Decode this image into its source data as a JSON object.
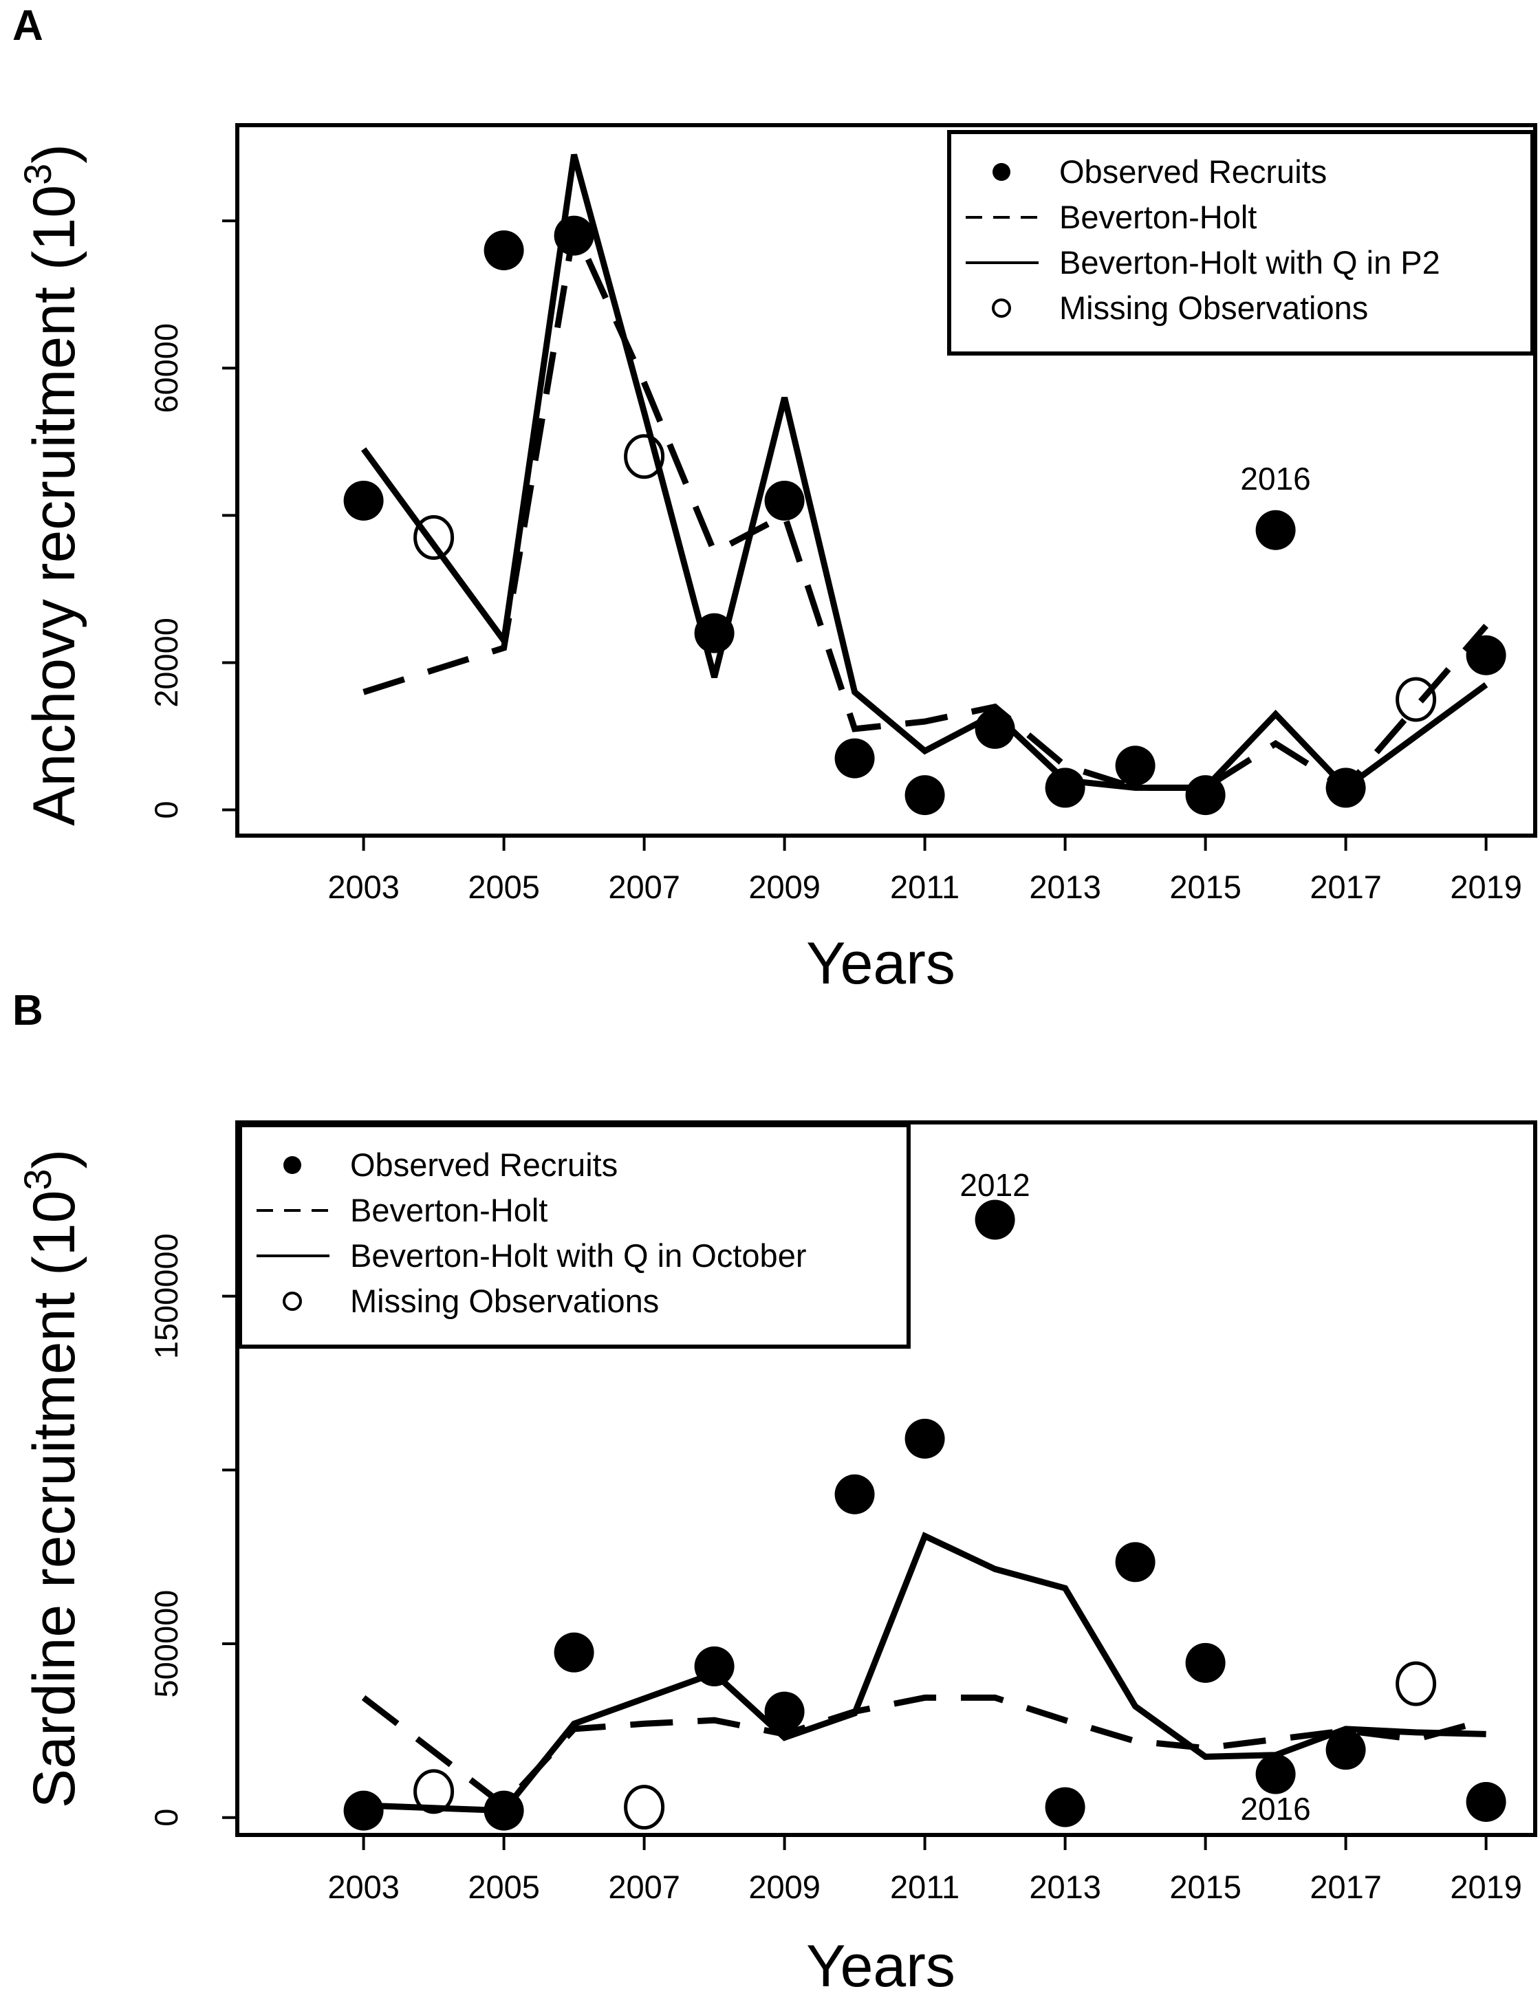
{
  "chart_data": [
    {
      "type": "line",
      "panel": "A",
      "xlabel": "Years",
      "ylabel": "Anchovy recruitment (10",
      "ylabel_sup": "3",
      "ylabel_close": ")",
      "xlim": [
        2001.2,
        2019.7
      ],
      "ylim": [
        -3500,
        93000
      ],
      "xticks": [
        2003,
        2005,
        2007,
        2009,
        2011,
        2013,
        2015,
        2017,
        2019
      ],
      "xtick_labels": [
        "2003",
        "2005",
        "2007",
        "2009",
        "2011",
        "2013",
        "2015",
        "2017",
        "2019"
      ],
      "yticks": [
        0,
        20000,
        40000,
        60000,
        80000
      ],
      "ytick_labels": [
        "0",
        "20000",
        "",
        "60000",
        ""
      ],
      "legend": {
        "position": "top-right",
        "entries": [
          "Observed Recruits",
          "Beverton-Holt",
          "Beverton-Holt with Q in P2",
          "Missing Observations"
        ]
      },
      "observed": {
        "x": [
          2003,
          2005,
          2006,
          2008,
          2009,
          2010,
          2011,
          2012,
          2013,
          2014,
          2015,
          2016,
          2017,
          2019
        ],
        "y": [
          42000,
          76000,
          78000,
          24000,
          42000,
          7000,
          2000,
          11000,
          3000,
          6000,
          2000,
          38000,
          3000,
          21000
        ]
      },
      "missing": {
        "x": [
          2004,
          2007,
          2018
        ],
        "y": [
          37000,
          48000,
          15000
        ]
      },
      "series": [
        {
          "name": "Beverton-Holt",
          "style": "dashed",
          "x": [
            2003,
            2004,
            2005,
            2006,
            2007,
            2008,
            2009,
            2010,
            2011,
            2012,
            2013,
            2014,
            2015,
            2016,
            2017,
            2018,
            2019
          ],
          "y": [
            16000,
            19000,
            22000,
            79000,
            58000,
            35000,
            40000,
            11000,
            12000,
            14000,
            6000,
            3000,
            3000,
            9000,
            3000,
            14000,
            25000
          ]
        },
        {
          "name": "Beverton-Holt with Q in P2",
          "style": "solid",
          "x": [
            2003,
            2004,
            2005,
            2006,
            2007,
            2008,
            2009,
            2010,
            2011,
            2012,
            2013,
            2014,
            2015,
            2016,
            2017,
            2018,
            2019
          ],
          "y": [
            49000,
            36000,
            23000,
            89000,
            54000,
            18000,
            56000,
            16000,
            8000,
            13000,
            4000,
            3000,
            3000,
            13000,
            3000,
            10000,
            17000
          ]
        }
      ],
      "annotations": [
        {
          "text": "2016",
          "x": 2016,
          "y": 45000
        }
      ]
    },
    {
      "type": "line",
      "panel": "B",
      "xlabel": "Years",
      "ylabel": "Sardine recruitment (10",
      "ylabel_sup": "3",
      "ylabel_close": ")",
      "xlim": [
        2001.2,
        2019.7
      ],
      "ylim": [
        -50000,
        2000000
      ],
      "xticks": [
        2003,
        2005,
        2007,
        2009,
        2011,
        2013,
        2015,
        2017,
        2019
      ],
      "xtick_labels": [
        "2003",
        "2005",
        "2007",
        "2009",
        "2011",
        "2013",
        "2015",
        "2017",
        "2019"
      ],
      "yticks": [
        0,
        500000,
        1000000,
        1500000
      ],
      "ytick_labels": [
        "0",
        "500000",
        "",
        "1500000"
      ],
      "legend": {
        "position": "top-left",
        "entries": [
          "Observed Recruits",
          "Beverton-Holt",
          "Beverton-Holt with Q in October",
          "Missing Observations"
        ]
      },
      "observed": {
        "x": [
          2003,
          2005,
          2006,
          2008,
          2009,
          2010,
          2011,
          2012,
          2013,
          2014,
          2015,
          2016,
          2017,
          2019
        ],
        "y": [
          20000,
          20000,
          475000,
          435000,
          305000,
          930000,
          1090000,
          1720000,
          30000,
          735000,
          445000,
          125000,
          195000,
          45000
        ]
      },
      "missing": {
        "x": [
          2004,
          2007,
          2018
        ],
        "y": [
          75000,
          30000,
          385000
        ]
      },
      "series": [
        {
          "name": "Beverton-Holt",
          "style": "dashed",
          "x": [
            2003,
            2004,
            2005,
            2006,
            2007,
            2008,
            2009,
            2010,
            2011,
            2012,
            2013,
            2014,
            2015,
            2016,
            2017,
            2018,
            2019
          ],
          "y": [
            345000,
            190000,
            35000,
            255000,
            270000,
            280000,
            240000,
            305000,
            345000,
            345000,
            280000,
            220000,
            200000,
            225000,
            250000,
            225000,
            280000
          ]
        },
        {
          "name": "Beverton-Holt with Q in October",
          "style": "solid",
          "x": [
            2003,
            2005,
            2006,
            2008,
            2009,
            2010,
            2011,
            2012,
            2013,
            2014,
            2015,
            2016,
            2017,
            2018,
            2019
          ],
          "y": [
            35000,
            20000,
            270000,
            415000,
            230000,
            300000,
            810000,
            715000,
            660000,
            320000,
            175000,
            180000,
            255000,
            245000,
            240000
          ]
        }
      ],
      "annotations": [
        {
          "text": "2012",
          "x": 2012,
          "y": 1820000
        },
        {
          "text": "2016",
          "x": 2016,
          "y": 25000
        }
      ]
    }
  ]
}
